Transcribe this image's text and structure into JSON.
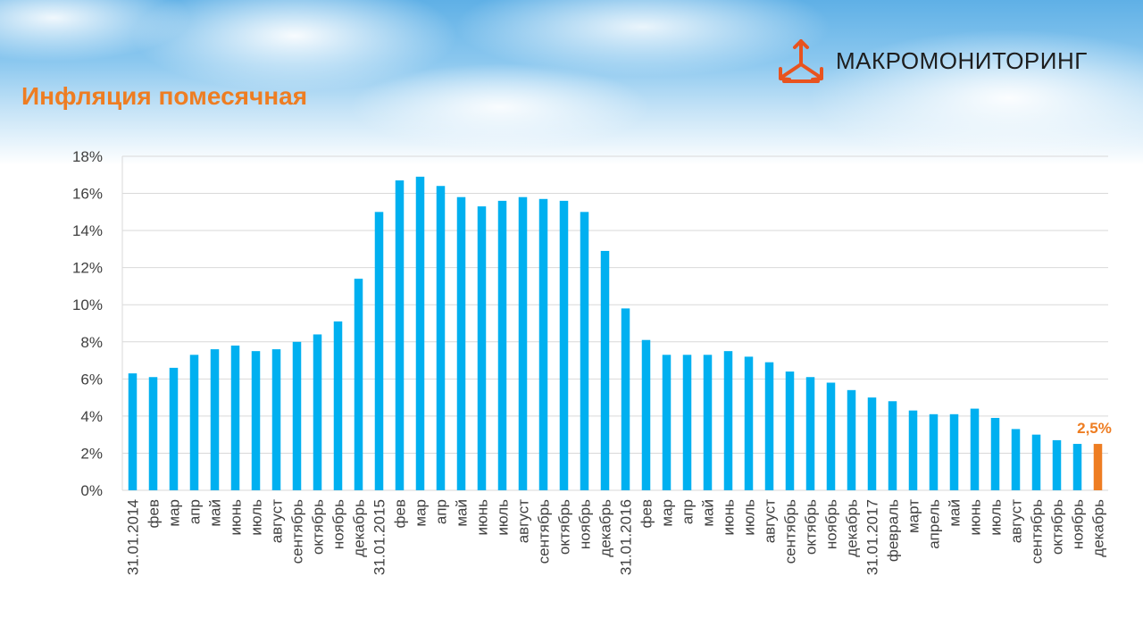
{
  "slide": {
    "title": "Инфляция помесячная",
    "brand": "МАКРОМОНИТОРИНГ",
    "brand_icon": "triangle-arrows-logo-icon"
  },
  "colors": {
    "bar": "#00b0f0",
    "highlight": "#ee7d22",
    "grid": "#d9d9d9",
    "title": "#ee7d22"
  },
  "chart_data": {
    "type": "bar",
    "title": "",
    "xlabel": "",
    "ylabel": "",
    "ylim": [
      0,
      18
    ],
    "y_ticks": [
      0,
      2,
      4,
      6,
      8,
      10,
      12,
      14,
      16,
      18
    ],
    "y_tick_format": "percent",
    "grid": "horizontal",
    "legend": "none",
    "categories": [
      "31.01.2014",
      "фев",
      "мар",
      "апр",
      "май",
      "июнь",
      "июль",
      "август",
      "сентябрь",
      "октябрь",
      "ноябрь",
      "декабрь",
      "31.01.2015",
      "фев",
      "мар",
      "апр",
      "май",
      "июнь",
      "июль",
      "август",
      "сентябрь",
      "октябрь",
      "ноябрь",
      "декабрь",
      "31.01.2016",
      "фев",
      "мар",
      "апр",
      "май",
      "июнь",
      "июль",
      "август",
      "сентябрь",
      "октябрь",
      "ноябрь",
      "декабрь",
      "31.01.2017",
      "февраль",
      "март",
      "апрель",
      "май",
      "июнь",
      "июль",
      "август",
      "сентябрь",
      "октябрь",
      "ноябрь",
      "декабрь"
    ],
    "values": [
      6.3,
      6.1,
      6.6,
      7.3,
      7.6,
      7.8,
      7.5,
      7.6,
      8.0,
      8.4,
      9.1,
      11.4,
      15.0,
      16.7,
      16.9,
      16.4,
      15.8,
      15.3,
      15.6,
      15.8,
      15.7,
      15.6,
      15.0,
      12.9,
      9.8,
      8.1,
      7.3,
      7.3,
      7.3,
      7.5,
      7.2,
      6.9,
      6.4,
      6.1,
      5.8,
      5.4,
      5.0,
      4.8,
      4.3,
      4.1,
      4.1,
      4.4,
      3.9,
      3.3,
      3.0,
      2.7,
      2.5,
      2.5
    ],
    "highlight_index": 47,
    "annotations": [
      {
        "index": 47,
        "text": "2,5%"
      }
    ]
  }
}
